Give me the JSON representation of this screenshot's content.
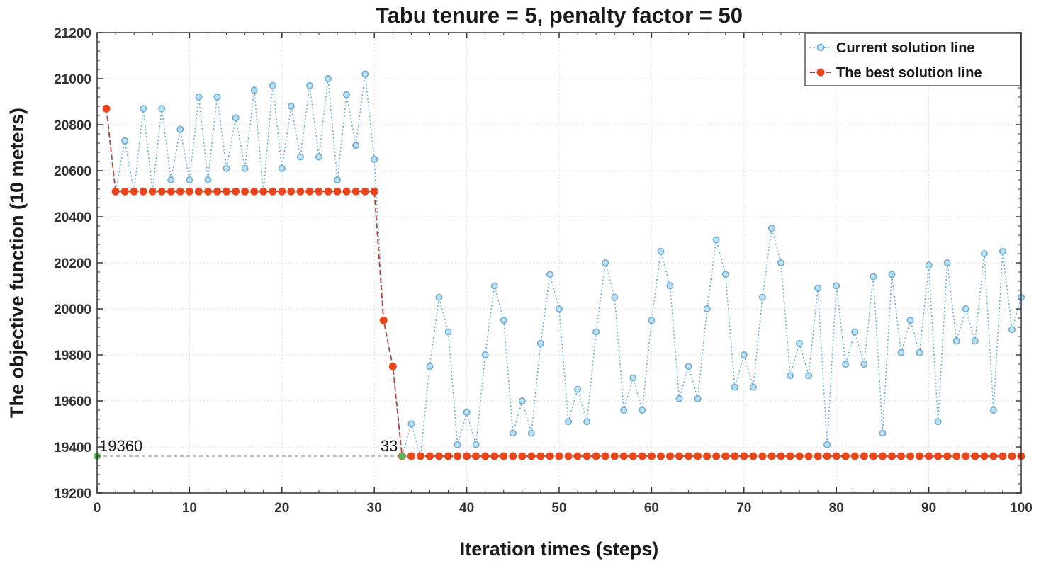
{
  "chart_data": {
    "type": "line",
    "title": "Tabu tenure = 5, penalty factor = 50",
    "xlabel": "Iteration times (steps)",
    "ylabel": "The objective function (10 meters)",
    "xlim": [
      0,
      100
    ],
    "ylim": [
      19200,
      21200
    ],
    "xticks": [
      0,
      10,
      20,
      30,
      40,
      50,
      60,
      70,
      80,
      90,
      100
    ],
    "yticks": [
      19200,
      19400,
      19600,
      19800,
      20000,
      20200,
      20400,
      20600,
      20800,
      21000,
      21200
    ],
    "grid": true,
    "legend_position": "top-right",
    "series": [
      {
        "name": "Current solution line",
        "color": "#6baed6",
        "line_style": "dotted",
        "marker": "circle-open",
        "x": [
          1,
          2,
          3,
          4,
          5,
          6,
          7,
          8,
          9,
          10,
          11,
          12,
          13,
          14,
          15,
          16,
          17,
          18,
          19,
          20,
          21,
          22,
          23,
          24,
          25,
          26,
          27,
          28,
          29,
          30,
          31,
          32,
          33,
          34,
          35,
          36,
          37,
          38,
          39,
          40,
          41,
          42,
          43,
          44,
          45,
          46,
          47,
          48,
          49,
          50,
          51,
          52,
          53,
          54,
          55,
          56,
          57,
          58,
          59,
          60,
          61,
          62,
          63,
          64,
          65,
          66,
          67,
          68,
          69,
          70,
          71,
          72,
          73,
          74,
          75,
          76,
          77,
          78,
          79,
          80,
          81,
          82,
          83,
          84,
          85,
          86,
          87,
          88,
          89,
          90,
          91,
          92,
          93,
          94,
          95,
          96,
          97,
          98,
          99,
          100
        ],
        "values": [
          20870,
          20510,
          20730,
          20510,
          20870,
          20510,
          20870,
          20560,
          20780,
          20560,
          20920,
          20560,
          20920,
          20610,
          20830,
          20610,
          20950,
          20510,
          20970,
          20610,
          20880,
          20660,
          20970,
          20660,
          21000,
          20560,
          20930,
          20710,
          21020,
          20650,
          19950,
          19750,
          19360,
          19500,
          19360,
          19750,
          20050,
          19900,
          19410,
          19550,
          19410,
          19800,
          20100,
          19950,
          19460,
          19600,
          19460,
          19850,
          20150,
          20000,
          19510,
          19650,
          19510,
          19900,
          20200,
          20050,
          19560,
          19700,
          19560,
          19950,
          20250,
          20100,
          19610,
          19750,
          19610,
          20000,
          20300,
          20150,
          19660,
          19800,
          19660,
          20050,
          20350,
          20200,
          19710,
          19850,
          19710,
          20090,
          19410,
          20100,
          19760,
          19900,
          19760,
          20140,
          19460,
          20150,
          19810,
          19950,
          19810,
          20190,
          19510,
          20200,
          19860,
          20000,
          19860,
          20240,
          19560,
          20250,
          19910,
          20050
        ]
      },
      {
        "name": "The best solution line",
        "color": "#e8461b",
        "line_style": "dashed",
        "marker": "circle-filled",
        "x": [
          1,
          2,
          3,
          4,
          5,
          6,
          7,
          8,
          9,
          10,
          11,
          12,
          13,
          14,
          15,
          16,
          17,
          18,
          19,
          20,
          21,
          22,
          23,
          24,
          25,
          26,
          27,
          28,
          29,
          30,
          31,
          32,
          33,
          34,
          35,
          36,
          37,
          38,
          39,
          40,
          41,
          42,
          43,
          44,
          45,
          46,
          47,
          48,
          49,
          50,
          51,
          52,
          53,
          54,
          55,
          56,
          57,
          58,
          59,
          60,
          61,
          62,
          63,
          64,
          65,
          66,
          67,
          68,
          69,
          70,
          71,
          72,
          73,
          74,
          75,
          76,
          77,
          78,
          79,
          80,
          81,
          82,
          83,
          84,
          85,
          86,
          87,
          88,
          89,
          90,
          91,
          92,
          93,
          94,
          95,
          96,
          97,
          98,
          99,
          100
        ],
        "values": [
          20870,
          20510,
          20510,
          20510,
          20510,
          20510,
          20510,
          20510,
          20510,
          20510,
          20510,
          20510,
          20510,
          20510,
          20510,
          20510,
          20510,
          20510,
          20510,
          20510,
          20510,
          20510,
          20510,
          20510,
          20510,
          20510,
          20510,
          20510,
          20510,
          20510,
          19950,
          19750,
          19360,
          19360,
          19360,
          19360,
          19360,
          19360,
          19360,
          19360,
          19360,
          19360,
          19360,
          19360,
          19360,
          19360,
          19360,
          19360,
          19360,
          19360,
          19360,
          19360,
          19360,
          19360,
          19360,
          19360,
          19360,
          19360,
          19360,
          19360,
          19360,
          19360,
          19360,
          19360,
          19360,
          19360,
          19360,
          19360,
          19360,
          19360,
          19360,
          19360,
          19360,
          19360,
          19360,
          19360,
          19360,
          19360,
          19360,
          19360,
          19360,
          19360,
          19360,
          19360,
          19360,
          19360,
          19360,
          19360,
          19360,
          19360,
          19360,
          19360,
          19360,
          19360,
          19360,
          19360,
          19360,
          19360,
          19360,
          19360
        ]
      }
    ],
    "annotations": [
      {
        "text": "19360",
        "x": 0,
        "y": 19360,
        "marker_color": "#5cb85c"
      },
      {
        "text": "33",
        "x": 33,
        "y": 19360,
        "marker_color": "#5cb85c"
      }
    ],
    "reference_line": {
      "y": 19360,
      "x_range": [
        0,
        33
      ],
      "color": "#999999",
      "line_style": "dashed"
    }
  }
}
